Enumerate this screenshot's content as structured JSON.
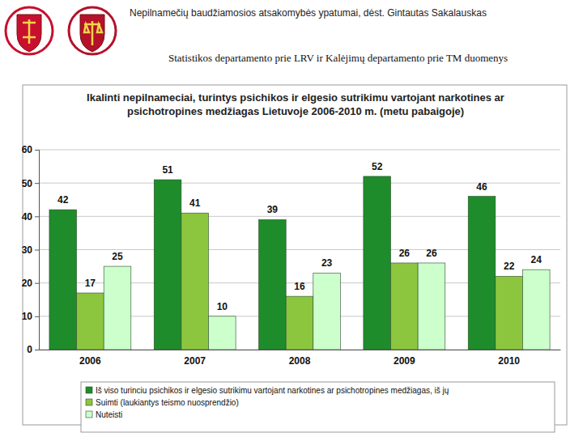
{
  "header": {
    "title": "Nepilnamečių baudžiamosios atsakomybės ypatumai, dėst. Gintautas Sakalauskas",
    "source": "Statistikos departamento prie LRV ir Kalėjimų departamento prie TM duomenys"
  },
  "chart_data": {
    "type": "bar",
    "title": "Ikalinti nepilnameciai, turintys psichikos ir elgesio sutrikimu vartojant narkotines ar psichotropines medžiagas Lietuvoje 2006-2010 m. (metu pabaigoje)",
    "categories": [
      "2006",
      "2007",
      "2008",
      "2009",
      "2010"
    ],
    "series": [
      {
        "name": "Iš viso turinciu psichikos ir elgesio sutrikimu vartojant narkotines ar psichotropines medžiagas, iš jų",
        "color": "#1e8c2a",
        "values": [
          42,
          51,
          39,
          52,
          46
        ]
      },
      {
        "name": "Suimti (laukiantys teismo nuosprendžio)",
        "color": "#8cc63e",
        "values": [
          17,
          41,
          16,
          26,
          22
        ]
      },
      {
        "name": "Nuteisti",
        "color": "#ccffcc",
        "values": [
          25,
          10,
          23,
          26,
          24
        ]
      }
    ],
    "ylim": [
      0,
      60
    ],
    "yticks": [
      0,
      10,
      20,
      30,
      40,
      50,
      60
    ],
    "grid": true,
    "data_labels": true,
    "legend": "bottom"
  }
}
